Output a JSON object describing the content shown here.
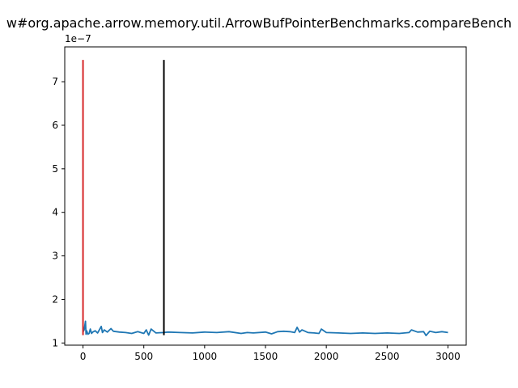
{
  "chart_data": {
    "type": "line",
    "title": "w#org.apache.arrow.memory.util.ArrowBufPointerBenchmarks.compareBench",
    "xlabel": "",
    "ylabel": "",
    "y_offset_label": "1e−7",
    "xlim": [
      -150,
      3150
    ],
    "ylim": [
      0.95,
      7.8
    ],
    "y_scale_note": "values in units of 1e-7",
    "x_ticks": [
      0,
      500,
      1000,
      1500,
      2000,
      2500,
      3000
    ],
    "x_tick_labels": [
      "0",
      "500",
      "1000",
      "1500",
      "2000",
      "2500",
      "3000"
    ],
    "y_ticks": [
      1,
      2,
      3,
      4,
      5,
      6,
      7
    ],
    "y_tick_labels": [
      "1",
      "2",
      "3",
      "4",
      "5",
      "6",
      "7"
    ],
    "grid": false,
    "series": [
      {
        "color": "#1f77b4",
        "x": [
          0,
          10,
          20,
          25,
          30,
          40,
          50,
          60,
          70,
          80,
          100,
          120,
          150,
          160,
          175,
          200,
          230,
          250,
          300,
          350,
          400,
          450,
          500,
          520,
          540,
          560,
          600,
          660,
          700,
          800,
          900,
          1000,
          1100,
          1200,
          1300,
          1350,
          1400,
          1500,
          1550,
          1600,
          1650,
          1700,
          1740,
          1760,
          1780,
          1800,
          1850,
          1900,
          1940,
          1960,
          2000,
          2100,
          2200,
          2300,
          2400,
          2500,
          2600,
          2680,
          2700,
          2750,
          2800,
          2820,
          2850,
          2900,
          2950,
          3000
        ],
        "y": [
          1.25,
          1.3,
          1.5,
          1.2,
          1.28,
          1.2,
          1.22,
          1.32,
          1.22,
          1.25,
          1.28,
          1.23,
          1.38,
          1.24,
          1.3,
          1.25,
          1.33,
          1.27,
          1.25,
          1.24,
          1.22,
          1.26,
          1.22,
          1.3,
          1.18,
          1.32,
          1.23,
          1.24,
          1.25,
          1.24,
          1.23,
          1.25,
          1.24,
          1.26,
          1.22,
          1.24,
          1.23,
          1.25,
          1.21,
          1.26,
          1.27,
          1.26,
          1.24,
          1.36,
          1.25,
          1.3,
          1.24,
          1.23,
          1.22,
          1.32,
          1.24,
          1.23,
          1.22,
          1.23,
          1.22,
          1.23,
          1.22,
          1.24,
          1.3,
          1.25,
          1.26,
          1.17,
          1.27,
          1.24,
          1.26,
          1.24
        ]
      }
    ],
    "vertical_lines": [
      {
        "x": 0,
        "y0": 1.18,
        "y1": 7.5,
        "color": "#d62728"
      },
      {
        "x": 665,
        "y0": 1.18,
        "y1": 7.5,
        "color": "#000000"
      }
    ]
  }
}
